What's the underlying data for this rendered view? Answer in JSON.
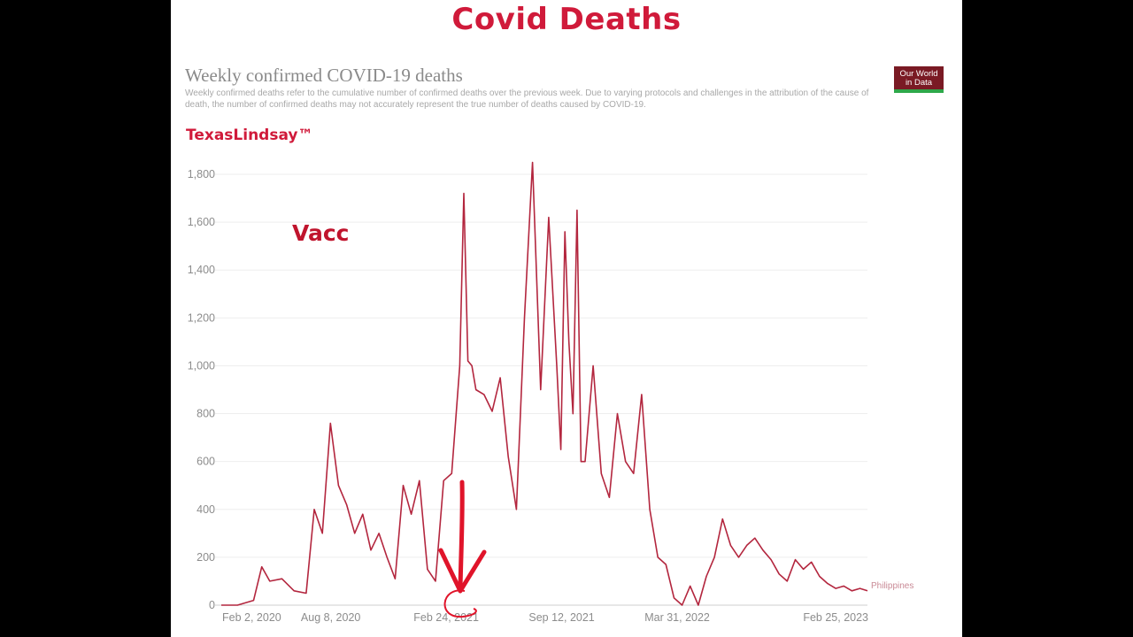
{
  "slide": {
    "headline": "Covid Deaths",
    "watermark": "TexasLindsay™",
    "annotation": "Vacc",
    "logo": "Our World in Data"
  },
  "chart_data": {
    "type": "line",
    "title": "Weekly confirmed COVID-19 deaths",
    "subtitle": "Weekly confirmed deaths refer to the cumulative number of confirmed deaths over the previous week. Due to varying protocols and challenges in the attribution of the cause of death, the number of confirmed deaths may not accurately represent the true number of deaths caused by COVID-19.",
    "xlabel": "",
    "ylabel": "",
    "ylim": [
      0,
      1800
    ],
    "yticks": [
      0,
      200,
      400,
      600,
      800,
      1000,
      1200,
      1400,
      1600,
      1800
    ],
    "ytick_labels": [
      "0",
      "200",
      "400",
      "600",
      "800",
      "1,000",
      "1,200",
      "1,400",
      "1,600",
      "1,800"
    ],
    "xticks": [
      "2020-02-02",
      "2020-08-08",
      "2021-02-24",
      "2021-09-12",
      "2022-03-31",
      "2023-02-25"
    ],
    "xtick_labels": [
      "Feb 2, 2020",
      "Aug 8, 2020",
      "Feb 24, 2021",
      "Sep 12, 2021",
      "Mar 31, 2022",
      "Feb 25, 2023"
    ],
    "grid": "horizontal",
    "color": "#b3263e",
    "series": [
      {
        "name": "Philippines",
        "x": [
          "2020-02-02",
          "2020-03-01",
          "2020-03-29",
          "2020-04-12",
          "2020-04-26",
          "2020-05-17",
          "2020-06-07",
          "2020-06-28",
          "2020-07-12",
          "2020-07-26",
          "2020-08-09",
          "2020-08-23",
          "2020-09-06",
          "2020-09-20",
          "2020-10-04",
          "2020-10-18",
          "2020-11-01",
          "2020-11-15",
          "2020-11-29",
          "2020-12-13",
          "2020-12-27",
          "2021-01-10",
          "2021-01-24",
          "2021-02-07",
          "2021-02-21",
          "2021-03-07",
          "2021-03-21",
          "2021-03-28",
          "2021-04-04",
          "2021-04-11",
          "2021-04-18",
          "2021-05-02",
          "2021-05-16",
          "2021-05-30",
          "2021-06-13",
          "2021-06-27",
          "2021-07-11",
          "2021-07-25",
          "2021-08-08",
          "2021-08-22",
          "2021-09-05",
          "2021-09-12",
          "2021-09-19",
          "2021-09-26",
          "2021-10-03",
          "2021-10-10",
          "2021-10-17",
          "2021-10-24",
          "2021-11-07",
          "2021-11-21",
          "2021-12-05",
          "2021-12-19",
          "2022-01-02",
          "2022-01-16",
          "2022-01-30",
          "2022-02-13",
          "2022-02-27",
          "2022-03-13",
          "2022-03-27",
          "2022-04-10",
          "2022-04-24",
          "2022-05-08",
          "2022-05-22",
          "2022-06-05",
          "2022-06-19",
          "2022-07-03",
          "2022-07-17",
          "2022-07-31",
          "2022-08-14",
          "2022-08-28",
          "2022-09-11",
          "2022-09-25",
          "2022-10-09",
          "2022-10-23",
          "2022-11-06",
          "2022-11-20",
          "2022-12-04",
          "2022-12-18",
          "2023-01-01",
          "2023-01-15",
          "2023-01-29",
          "2023-02-12",
          "2023-02-25"
        ],
        "values": [
          0,
          0,
          20,
          160,
          100,
          110,
          60,
          50,
          400,
          300,
          760,
          500,
          420,
          300,
          380,
          230,
          300,
          200,
          110,
          500,
          380,
          520,
          150,
          100,
          520,
          550,
          1000,
          1720,
          1020,
          1000,
          900,
          880,
          810,
          950,
          620,
          400,
          1200,
          1850,
          900,
          1620,
          1000,
          650,
          1560,
          1100,
          800,
          1650,
          600,
          600,
          1000,
          550,
          450,
          800,
          600,
          550,
          880,
          400,
          200,
          170,
          30,
          0,
          80,
          0,
          120,
          200,
          360,
          250,
          200,
          250,
          280,
          230,
          190,
          130,
          100,
          190,
          150,
          180,
          120,
          90,
          70,
          80,
          60,
          70,
          60
        ]
      }
    ]
  }
}
